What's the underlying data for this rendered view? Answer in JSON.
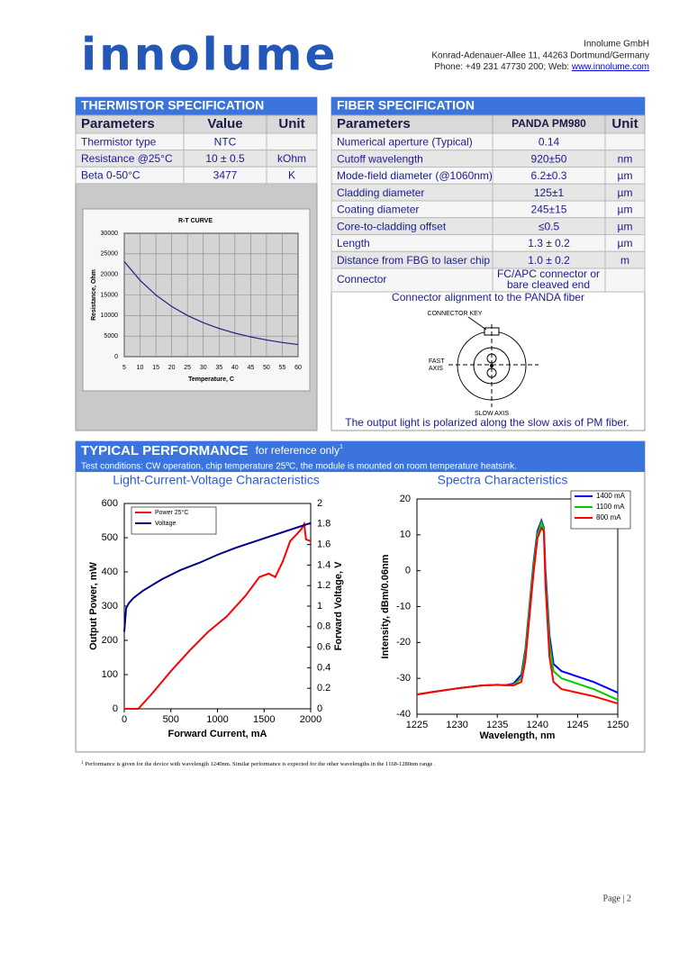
{
  "header": {
    "logo": "innolume",
    "company": "Innolume GmbH",
    "address": "Konrad-Adenauer-Allee 11, 44263 Dortmund/Germany",
    "contact": "Phone: +49 231 47730 200; Web: ",
    "website": "www.innolume.com"
  },
  "thermistor": {
    "title": "THERMISTOR SPECIFICATION",
    "columns": [
      "Parameters",
      "Value",
      "Unit"
    ],
    "rows": [
      {
        "parameter": "Thermistor type",
        "value": "NTC"
      },
      {
        "parameter": "Resistance @25°C",
        "value": "10 ± 0.5",
        "unit": "kOhm"
      },
      {
        "parameter": "Beta 0-50°C",
        "value": "3477",
        "unit": "K"
      }
    ]
  },
  "rt_curve": {
    "type": "line",
    "title": "R-T CURVE",
    "x_label": "Temperature, C",
    "y_label": "Resistance, Ohm",
    "x": [
      5,
      10,
      15,
      20,
      25,
      30,
      35,
      40,
      45,
      50,
      55,
      60
    ],
    "values": [
      23130,
      18550,
      14990,
      12200,
      10000,
      8250,
      6850,
      5720,
      4800,
      4060,
      3440,
      2940
    ],
    "color": "#1a237e",
    "grid": true,
    "xlim": [
      5,
      60
    ],
    "xticks": [
      5,
      10,
      15,
      20,
      25,
      30,
      35,
      40,
      45,
      50,
      55,
      60
    ],
    "ylim": [
      0,
      30000
    ],
    "yticks": [
      0,
      5000,
      10000,
      15000,
      20000,
      25000,
      30000
    ]
  },
  "fiber": {
    "title": "FIBER SPECIFICATION",
    "columns": [
      "Parameters",
      "PANDA PM980",
      "Unit"
    ],
    "rows": [
      {
        "parameter": "Numerical aperture (Typical)",
        "value": "0.14"
      },
      {
        "parameter": "Cutoff wavelength",
        "value": "920±50",
        "unit": "nm"
      },
      {
        "parameter": "Mode-field diameter (@1060nm)",
        "value": "6.2±0.3",
        "unit": "µm"
      },
      {
        "parameter": "Cladding diameter",
        "value": "125±1",
        "unit": "µm"
      },
      {
        "parameter": "Coating diameter",
        "value": "245±15",
        "unit": "µm"
      },
      {
        "parameter": "Core-to-cladding offset",
        "value": "≤0.5",
        "unit": "µm"
      },
      {
        "parameter": "Length",
        "value": "1.3 ± 0.2",
        "unit": "µm"
      },
      {
        "parameter": "Distance from FBG to laser chip",
        "value": "1.0 ± 0.2",
        "unit": "m"
      }
    ],
    "connector": {
      "parameter": "Connector",
      "value_lines": [
        "FC/APC connector or",
        "bare cleaved end"
      ]
    },
    "diagram_caption": "Connector alignment to the PANDA fiber",
    "connector_key": "CONNECTOR KEY",
    "fast_axis_lines": [
      "FAST",
      "AXIS"
    ],
    "slow_axis": "SLOW AXIS",
    "note": "The output light is polarized along the slow axis of PM fiber."
  },
  "performance": {
    "title": "TYPICAL PERFORMANCE",
    "subtitle": "for reference only",
    "footnote_mark": "1",
    "test_conditions": "Test conditions: CW operation, chip temperature 25ºC, the module is mounted on room temperature heatsink."
  },
  "liv_chart": {
    "type": "line",
    "title": "Light-Current-Voltage Characteristics",
    "x_label": "Forward Current, mA",
    "y_label": "Output Power, mW",
    "y2_label": "Forward Voltage, V",
    "series": [
      {
        "name": "Power  25°C",
        "color": "#ff0000",
        "x": [
          0,
          150,
          300,
          500,
          700,
          900,
          1100,
          1300,
          1450,
          1550,
          1620,
          1700,
          1780,
          1850,
          1900,
          1930,
          1950,
          2000
        ],
        "values": [
          0,
          0,
          45,
          110,
          170,
          225,
          270,
          330,
          385,
          395,
          385,
          430,
          490,
          510,
          525,
          540,
          495,
          490
        ]
      },
      {
        "name": "Voltage",
        "color": "#000080",
        "axis": "y2",
        "x": [
          0,
          20,
          50,
          100,
          200,
          400,
          600,
          800,
          1000,
          1200,
          1400,
          1600,
          1800,
          2000
        ],
        "values": [
          0.75,
          0.98,
          1.03,
          1.08,
          1.15,
          1.26,
          1.35,
          1.42,
          1.5,
          1.57,
          1.63,
          1.69,
          1.75,
          1.81
        ]
      }
    ],
    "xlim": [
      0,
      2000
    ],
    "xticks": [
      0,
      500,
      1000,
      1500,
      2000
    ],
    "ylim": [
      0,
      600
    ],
    "yticks": [
      0,
      100,
      200,
      300,
      400,
      500,
      600
    ],
    "y2lim": [
      0,
      2
    ],
    "y2ticks": [
      0,
      0.2,
      0.4,
      0.6,
      0.8,
      1,
      1.2,
      1.4,
      1.6,
      1.8,
      2
    ]
  },
  "spectra_chart": {
    "type": "line",
    "title": "Spectra Characteristics",
    "x_label": "Wavelength, nm",
    "y_label": "Intensity, dBm/0.06nm",
    "x": [
      1225,
      1227,
      1230,
      1233,
      1235,
      1236,
      1237,
      1238,
      1238.5,
      1239,
      1239.5,
      1240,
      1240.5,
      1240.8,
      1241,
      1241.5,
      1242,
      1243,
      1245,
      1247,
      1250
    ],
    "series": [
      {
        "name": "1400 mA",
        "color": "#0000ff",
        "values": [
          -34.5,
          -33.8,
          -32.8,
          -32,
          -31.8,
          -31.9,
          -31.5,
          -29,
          -22,
          -10,
          2,
          11,
          14,
          12,
          0,
          -18,
          -26,
          -28,
          -29.5,
          -31,
          -34
        ]
      },
      {
        "name": "1100 mA",
        "color": "#00cc00",
        "values": [
          -34.5,
          -33.8,
          -32.8,
          -32,
          -31.8,
          -31.9,
          -31.8,
          -30,
          -23,
          -11,
          1,
          10,
          13.5,
          11.5,
          -2,
          -20,
          -28,
          -30,
          -31.5,
          -33,
          -36
        ]
      },
      {
        "name": "800 mA",
        "color": "#ff0000",
        "values": [
          -34.5,
          -33.8,
          -32.8,
          -32,
          -31.8,
          -31.9,
          -32,
          -31,
          -25,
          -13,
          -1,
          9,
          12,
          11,
          -4,
          -24,
          -31,
          -33,
          -34,
          -35,
          -37
        ]
      }
    ],
    "xlim": [
      1225,
      1250
    ],
    "xticks": [
      1225,
      1230,
      1235,
      1240,
      1245,
      1250
    ],
    "ylim": [
      -40,
      20
    ],
    "yticks": [
      -40,
      -30,
      -20,
      -10,
      0,
      10,
      20
    ]
  },
  "footnote": {
    "mark": "1",
    "text": "Performance is given for the device with wavelength 1240nm. Similar performance is expected for the other wavelengths in the 1168-1280nm range ."
  },
  "page_number": "Page | 2"
}
